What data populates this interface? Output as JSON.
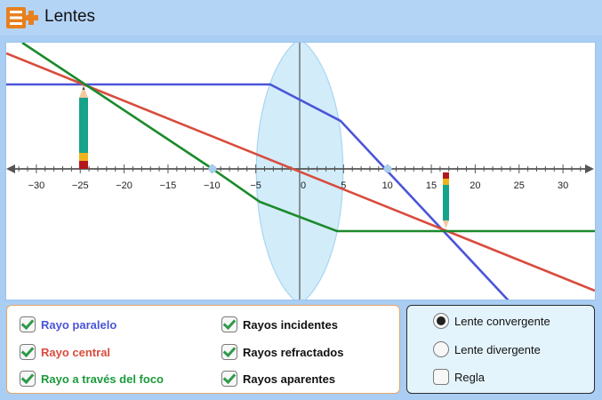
{
  "app": {
    "title": "Lentes",
    "logo_icon": "e-plus-logo"
  },
  "axis": {
    "tick_labels": [
      "−30",
      "−25",
      "−20",
      "−15",
      "−10",
      "−5",
      "0",
      "5",
      "10",
      "15",
      "20",
      "25",
      "30"
    ],
    "focal_points": [
      -10,
      10
    ]
  },
  "objects": {
    "object_height": 5,
    "object_x": -24,
    "image_x": 17
  },
  "rays_panel": {
    "ray_parallel": {
      "label": "Rayo paralelo",
      "color": "#4a55d8",
      "checked": true
    },
    "ray_central": {
      "label": "Rayo central",
      "color": "#d94c3d",
      "checked": true
    },
    "ray_focus": {
      "label": "Rayo a través del foco",
      "color": "#1b9a3c",
      "checked": true
    },
    "incident": {
      "label": "Rayos incidentes",
      "checked": true
    },
    "refracted": {
      "label": "Rayos refractados",
      "checked": true
    },
    "apparent": {
      "label": "Rayos aparentes",
      "checked": true
    }
  },
  "lens_panel": {
    "converging": {
      "label": "Lente convergente",
      "selected": true
    },
    "diverging": {
      "label": "Lente divergente",
      "selected": false
    },
    "ruler": {
      "label": "Regla",
      "checked": false
    }
  }
}
